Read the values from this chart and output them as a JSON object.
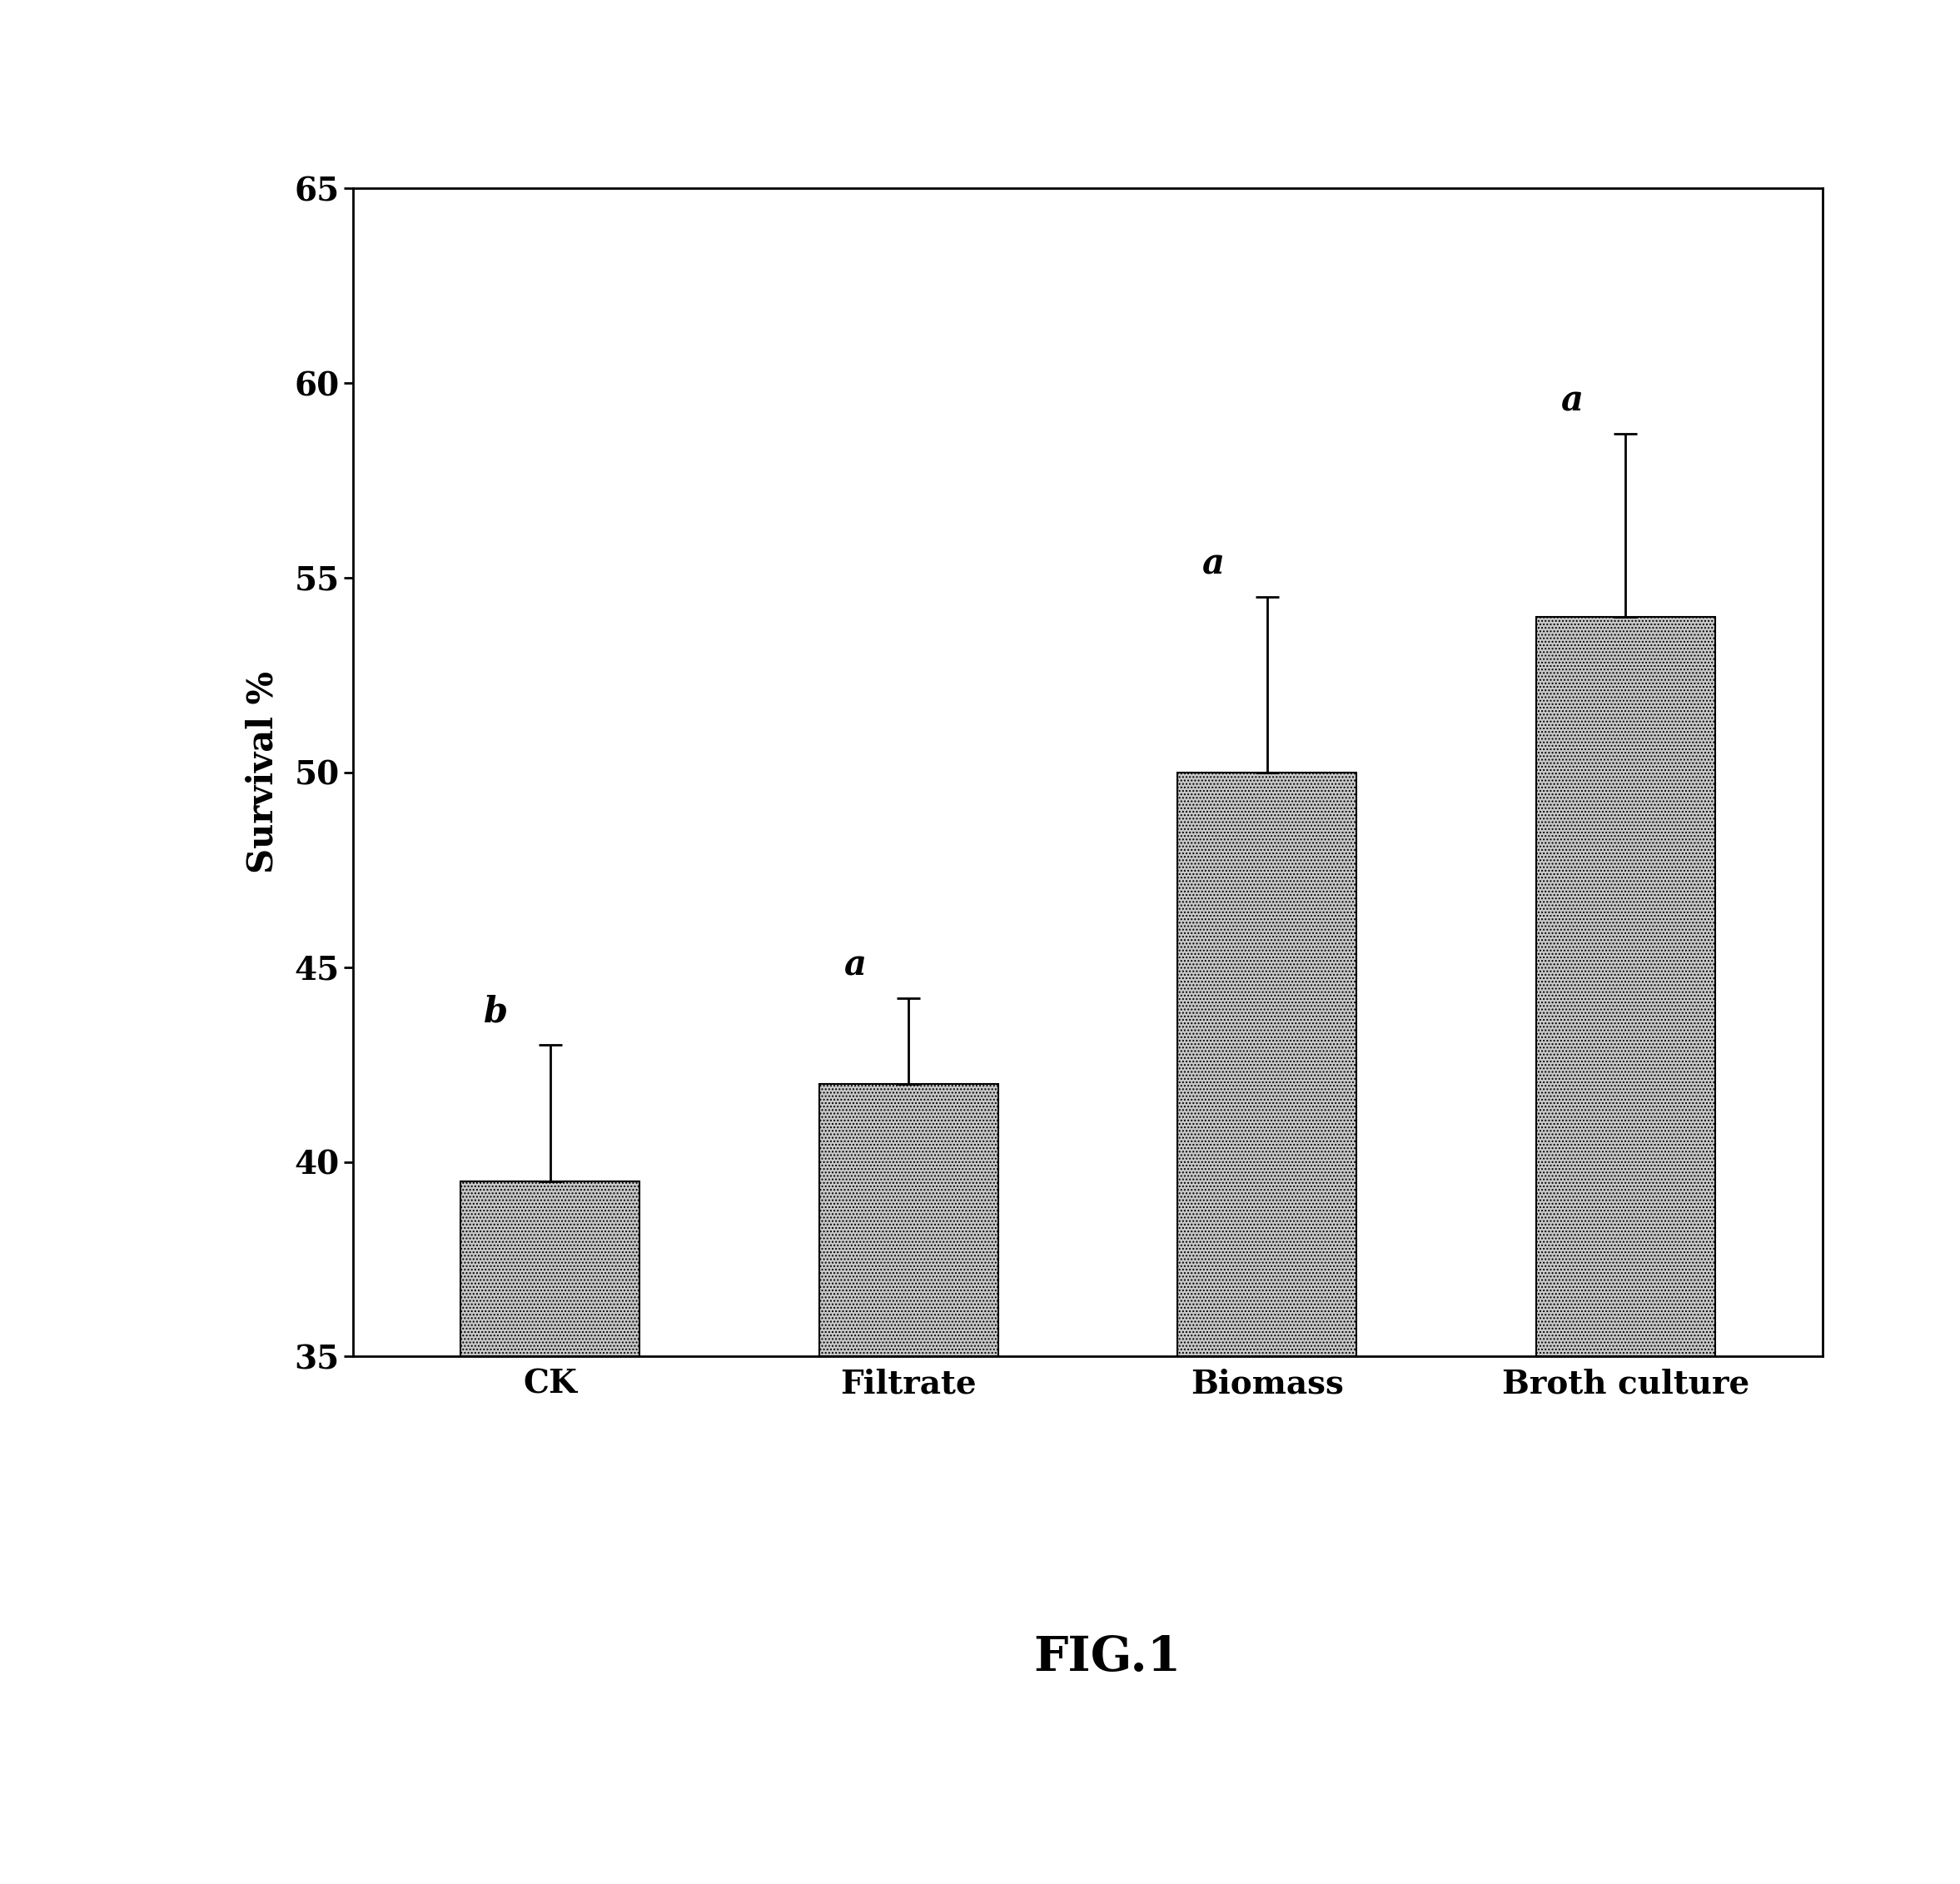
{
  "categories": [
    "CK",
    "Filtrate",
    "Biomass",
    "Broth culture"
  ],
  "values": [
    39.5,
    42.0,
    50.0,
    54.0
  ],
  "errors": [
    3.5,
    2.2,
    4.5,
    4.7
  ],
  "stat_labels": [
    "b",
    "a",
    "a",
    "a"
  ],
  "bar_color": "#c8c8c8",
  "bar_edgecolor": "#000000",
  "ylabel": "Survival %",
  "ylim": [
    35,
    65
  ],
  "yticks": [
    35,
    40,
    45,
    50,
    55,
    60,
    65
  ],
  "figure_label": "FIG.1",
  "label_fontsize": 30,
  "tick_fontsize": 28,
  "stat_fontsize": 30,
  "fig_label_fontsize": 42,
  "xtick_fontsize": 28,
  "bar_width": 0.5
}
